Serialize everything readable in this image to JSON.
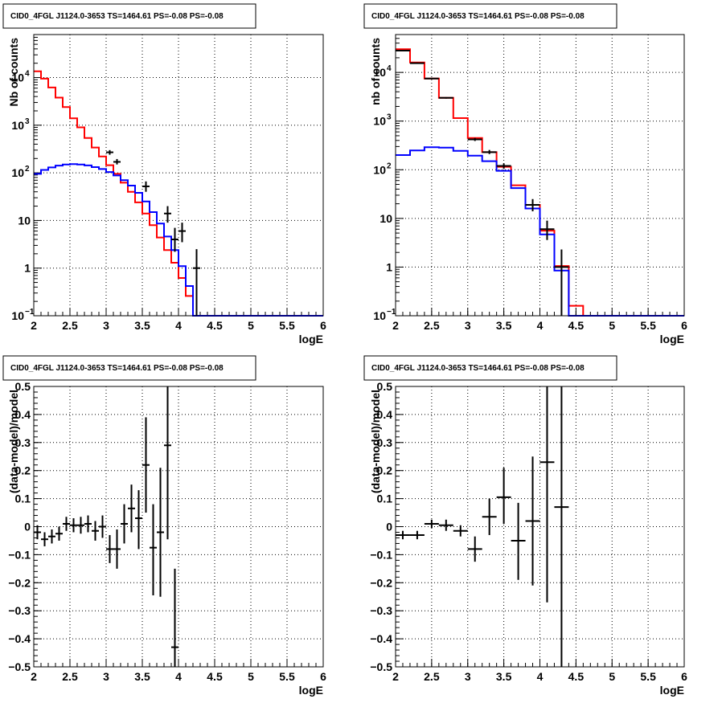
{
  "chart_data": [
    {
      "type": "step",
      "title": "CID0_4FGL J1124.0-3653 TS=1464.61 PS=-0.08 PS=-0.08",
      "xlabel": "logE",
      "ylabel": "Nb of counts",
      "xlim": [
        2,
        6
      ],
      "ylim": [
        0.1,
        80000
      ],
      "yscale": "log",
      "xticks": [
        "2",
        "2.5",
        "3",
        "3.5",
        "4",
        "4.5",
        "5",
        "5.5",
        "6"
      ],
      "yticks": [
        {
          "value": 0.1,
          "base": "10",
          "exp": "−1"
        },
        {
          "value": 1,
          "label": "1"
        },
        {
          "value": 10,
          "label": "10"
        },
        {
          "value": 100,
          "base": "10",
          "exp": "2"
        },
        {
          "value": 1000,
          "base": "10",
          "exp": "3"
        },
        {
          "value": 10000,
          "base": "10",
          "exp": "4"
        }
      ],
      "grid": true,
      "bin_edges": [
        2.0,
        2.1,
        2.2,
        2.3,
        2.4,
        2.5,
        2.6,
        2.7,
        2.8,
        2.9,
        3.0,
        3.1,
        3.2,
        3.3,
        3.4,
        3.5,
        3.6,
        3.7,
        3.8,
        3.9,
        4.0,
        4.1,
        4.2,
        4.3,
        4.4,
        4.5,
        4.6,
        4.7,
        4.8,
        4.9,
        5.0,
        5.1,
        5.2,
        5.3,
        5.4,
        5.5,
        5.6,
        5.7,
        5.8,
        5.9,
        6.0
      ],
      "series": [
        {
          "name": "",
          "color": "#ff0000",
          "kind": "step",
          "values": [
            13500,
            9500,
            6200,
            3800,
            2400,
            1400,
            900,
            540,
            340,
            220,
            145,
            95,
            62,
            40,
            24,
            14,
            8,
            4.4,
            2.4,
            1.3,
            0.62,
            0.26,
            0.1,
            0.1,
            0.1,
            0.1,
            0.1,
            0.1,
            0.1,
            0.1,
            0.1,
            0.1,
            0.1,
            0.1,
            0.1,
            0.1,
            0.1,
            0.1,
            0.1,
            0.1
          ]
        },
        {
          "name": "",
          "color": "#0000ff",
          "kind": "step",
          "values": [
            95,
            115,
            130,
            142,
            150,
            153,
            150,
            143,
            132,
            120,
            104,
            88,
            70,
            54,
            38,
            25,
            15,
            8.6,
            4.6,
            2.4,
            1.1,
            0.42,
            0.1,
            0.1,
            0.1,
            0.1,
            0.1,
            0.1,
            0.1,
            0.1,
            0.1,
            0.1,
            0.1,
            0.1,
            0.1,
            0.1,
            0.1,
            0.1,
            0.1,
            0.1
          ]
        },
        {
          "name": "",
          "color": "#000000",
          "kind": "points",
          "points": [
            {
              "x": 3.05,
              "y": 270,
              "lo": 240,
              "hi": 300,
              "dx": 0.05
            },
            {
              "x": 3.15,
              "y": 170,
              "lo": 150,
              "hi": 195,
              "dx": 0.05
            },
            {
              "x": 3.55,
              "y": 52,
              "lo": 40,
              "hi": 66,
              "dx": 0.05
            },
            {
              "x": 3.85,
              "y": 14,
              "lo": 9,
              "hi": 20,
              "dx": 0.05
            },
            {
              "x": 3.95,
              "y": 4,
              "lo": 2.2,
              "hi": 7,
              "dx": 0.05
            },
            {
              "x": 4.05,
              "y": 6,
              "lo": 3.5,
              "hi": 9,
              "dx": 0.05
            },
            {
              "x": 4.25,
              "y": 1,
              "lo": 0.1,
              "hi": 2.5,
              "dx": 0.05
            }
          ]
        }
      ]
    },
    {
      "type": "step",
      "title": "CID0_4FGL J1124.0-3653 TS=1464.61 PS=-0.08 PS=-0.08",
      "xlabel": "logE",
      "ylabel": "nb of counts",
      "xlim": [
        2,
        6
      ],
      "ylim": [
        0.1,
        60000
      ],
      "yscale": "log",
      "xticks": [
        "2",
        "2.5",
        "3",
        "3.5",
        "4",
        "4.5",
        "5",
        "5.5",
        "6"
      ],
      "yticks": [
        {
          "value": 0.1,
          "base": "10",
          "exp": "−1"
        },
        {
          "value": 1,
          "label": "1"
        },
        {
          "value": 10,
          "label": "10"
        },
        {
          "value": 100,
          "base": "10",
          "exp": "2"
        },
        {
          "value": 1000,
          "base": "10",
          "exp": "3"
        },
        {
          "value": 10000,
          "base": "10",
          "exp": "4"
        }
      ],
      "grid": true,
      "bin_edges": [
        2.0,
        2.2,
        2.4,
        2.6,
        2.8,
        3.0,
        3.2,
        3.4,
        3.6,
        3.8,
        4.0,
        4.2,
        4.4,
        4.6,
        4.8,
        5.0,
        5.2,
        5.4,
        5.6,
        5.8,
        6.0
      ],
      "series": [
        {
          "name": "",
          "color": "#ff0000",
          "kind": "step",
          "values": [
            30000,
            16000,
            7500,
            3000,
            1150,
            450,
            230,
            115,
            48,
            19,
            5.6,
            1.05,
            0.16,
            0.1,
            0.1,
            0.1,
            0.1,
            0.1,
            0.1,
            0.1
          ]
        },
        {
          "name": "",
          "color": "#0000ff",
          "kind": "step",
          "values": [
            200,
            250,
            290,
            285,
            245,
            195,
            150,
            95,
            42,
            16,
            4.7,
            0.85,
            0.1,
            0.1,
            0.1,
            0.1,
            0.1,
            0.1,
            0.1,
            0.1
          ]
        },
        {
          "name": "",
          "color": "#000000",
          "kind": "points",
          "points": [
            {
              "x": 2.1,
              "y": 28000,
              "lo": 27000,
              "hi": 29000,
              "dx": 0.1
            },
            {
              "x": 2.3,
              "y": 15500,
              "lo": 15000,
              "hi": 16000,
              "dx": 0.1
            },
            {
              "x": 2.5,
              "y": 7500,
              "lo": 7300,
              "hi": 7700,
              "dx": 0.1
            },
            {
              "x": 2.7,
              "y": 3000,
              "lo": 2900,
              "hi": 3100,
              "dx": 0.1
            },
            {
              "x": 3.1,
              "y": 420,
              "lo": 390,
              "hi": 450,
              "dx": 0.1
            },
            {
              "x": 3.3,
              "y": 230,
              "lo": 210,
              "hi": 255,
              "dx": 0.1
            },
            {
              "x": 3.5,
              "y": 120,
              "lo": 105,
              "hi": 135,
              "dx": 0.1
            },
            {
              "x": 3.9,
              "y": 19,
              "lo": 14,
              "hi": 25,
              "dx": 0.1
            },
            {
              "x": 4.1,
              "y": 6,
              "lo": 3.6,
              "hi": 9,
              "dx": 0.1
            },
            {
              "x": 4.3,
              "y": 1,
              "lo": 0.1,
              "hi": 2.3,
              "dx": 0.1
            }
          ]
        }
      ]
    },
    {
      "type": "scatter",
      "title": "CID0_4FGL J1124.0-3653 TS=1464.61 PS=-0.08 PS=-0.08",
      "xlabel": "logE",
      "ylabel": "(data-model)/model",
      "xlim": [
        2,
        6
      ],
      "ylim": [
        -0.5,
        0.5
      ],
      "xticks": [
        "2",
        "2.5",
        "3",
        "3.5",
        "4",
        "4.5",
        "5",
        "5.5",
        "6"
      ],
      "yticks": [
        "−0.5",
        "−0.4",
        "−0.3",
        "−0.2",
        "−0.1",
        "0",
        "0.1",
        "0.2",
        "0.3",
        "0.4",
        "0.5"
      ],
      "grid": true,
      "series": [
        {
          "name": "",
          "color": "#000000",
          "kind": "points",
          "points": [
            {
              "x": 2.05,
              "y": -0.02,
              "lo": -0.045,
              "hi": 0.005,
              "dx": 0.05
            },
            {
              "x": 2.15,
              "y": -0.045,
              "lo": -0.07,
              "hi": -0.02,
              "dx": 0.05
            },
            {
              "x": 2.25,
              "y": -0.035,
              "lo": -0.06,
              "hi": -0.01,
              "dx": 0.05
            },
            {
              "x": 2.35,
              "y": -0.025,
              "lo": -0.05,
              "hi": 0.0,
              "dx": 0.05
            },
            {
              "x": 2.45,
              "y": 0.01,
              "lo": -0.015,
              "hi": 0.035,
              "dx": 0.05
            },
            {
              "x": 2.55,
              "y": 0.005,
              "lo": -0.02,
              "hi": 0.03,
              "dx": 0.05
            },
            {
              "x": 2.65,
              "y": 0.005,
              "lo": -0.025,
              "hi": 0.035,
              "dx": 0.05
            },
            {
              "x": 2.75,
              "y": 0.01,
              "lo": -0.02,
              "hi": 0.04,
              "dx": 0.05
            },
            {
              "x": 2.85,
              "y": -0.015,
              "lo": -0.05,
              "hi": 0.02,
              "dx": 0.05
            },
            {
              "x": 2.95,
              "y": 0.0,
              "lo": -0.04,
              "hi": 0.04,
              "dx": 0.05
            },
            {
              "x": 3.05,
              "y": -0.08,
              "lo": -0.13,
              "hi": -0.03,
              "dx": 0.05
            },
            {
              "x": 3.15,
              "y": -0.08,
              "lo": -0.15,
              "hi": -0.01,
              "dx": 0.05
            },
            {
              "x": 3.25,
              "y": 0.01,
              "lo": -0.06,
              "hi": 0.08,
              "dx": 0.05
            },
            {
              "x": 3.35,
              "y": 0.065,
              "lo": -0.02,
              "hi": 0.15,
              "dx": 0.05
            },
            {
              "x": 3.45,
              "y": 0.03,
              "lo": -0.08,
              "hi": 0.13,
              "dx": 0.05
            },
            {
              "x": 3.55,
              "y": 0.22,
              "lo": 0.05,
              "hi": 0.39,
              "dx": 0.05
            },
            {
              "x": 3.65,
              "y": -0.075,
              "lo": -0.245,
              "hi": 0.08,
              "dx": 0.05
            },
            {
              "x": 3.75,
              "y": -0.02,
              "lo": -0.25,
              "hi": 0.21,
              "dx": 0.05
            },
            {
              "x": 3.85,
              "y": 0.29,
              "lo": -0.045,
              "hi": 0.5,
              "dx": 0.05
            },
            {
              "x": 3.95,
              "y": -0.43,
              "lo": -0.5,
              "hi": -0.15,
              "dx": 0.05
            }
          ]
        }
      ]
    },
    {
      "type": "scatter",
      "title": "CID0_4FGL J1124.0-3653 TS=1464.61 PS=-0.08 PS=-0.08",
      "xlabel": "logE",
      "ylabel": "(data-model)/model",
      "xlim": [
        2,
        6
      ],
      "ylim": [
        -0.5,
        0.5
      ],
      "xticks": [
        "2",
        "2.5",
        "3",
        "3.5",
        "4",
        "4.5",
        "5",
        "5.5",
        "6"
      ],
      "yticks": [
        "−0.5",
        "−0.4",
        "−0.3",
        "−0.2",
        "−0.1",
        "0",
        "0.1",
        "0.2",
        "0.3",
        "0.4",
        "0.5"
      ],
      "grid": true,
      "series": [
        {
          "name": "",
          "color": "#000000",
          "kind": "points",
          "points": [
            {
              "x": 2.1,
              "y": -0.03,
              "lo": -0.045,
              "hi": -0.015,
              "dx": 0.1
            },
            {
              "x": 2.3,
              "y": -0.03,
              "lo": -0.045,
              "hi": -0.015,
              "dx": 0.1
            },
            {
              "x": 2.5,
              "y": 0.01,
              "lo": -0.005,
              "hi": 0.025,
              "dx": 0.1
            },
            {
              "x": 2.7,
              "y": 0.005,
              "lo": -0.015,
              "hi": 0.025,
              "dx": 0.1
            },
            {
              "x": 2.9,
              "y": -0.015,
              "lo": -0.035,
              "hi": 0.005,
              "dx": 0.1
            },
            {
              "x": 3.1,
              "y": -0.08,
              "lo": -0.125,
              "hi": -0.035,
              "dx": 0.1
            },
            {
              "x": 3.3,
              "y": 0.035,
              "lo": -0.03,
              "hi": 0.1,
              "dx": 0.1
            },
            {
              "x": 3.5,
              "y": 0.105,
              "lo": 0.01,
              "hi": 0.21,
              "dx": 0.1
            },
            {
              "x": 3.7,
              "y": -0.05,
              "lo": -0.19,
              "hi": 0.085,
              "dx": 0.1
            },
            {
              "x": 3.9,
              "y": 0.02,
              "lo": -0.21,
              "hi": 0.25,
              "dx": 0.1
            },
            {
              "x": 4.1,
              "y": 0.23,
              "lo": -0.27,
              "hi": 0.5,
              "dx": 0.1
            },
            {
              "x": 4.3,
              "y": 0.07,
              "lo": -0.5,
              "hi": 0.5,
              "dx": 0.1
            }
          ]
        }
      ]
    }
  ]
}
